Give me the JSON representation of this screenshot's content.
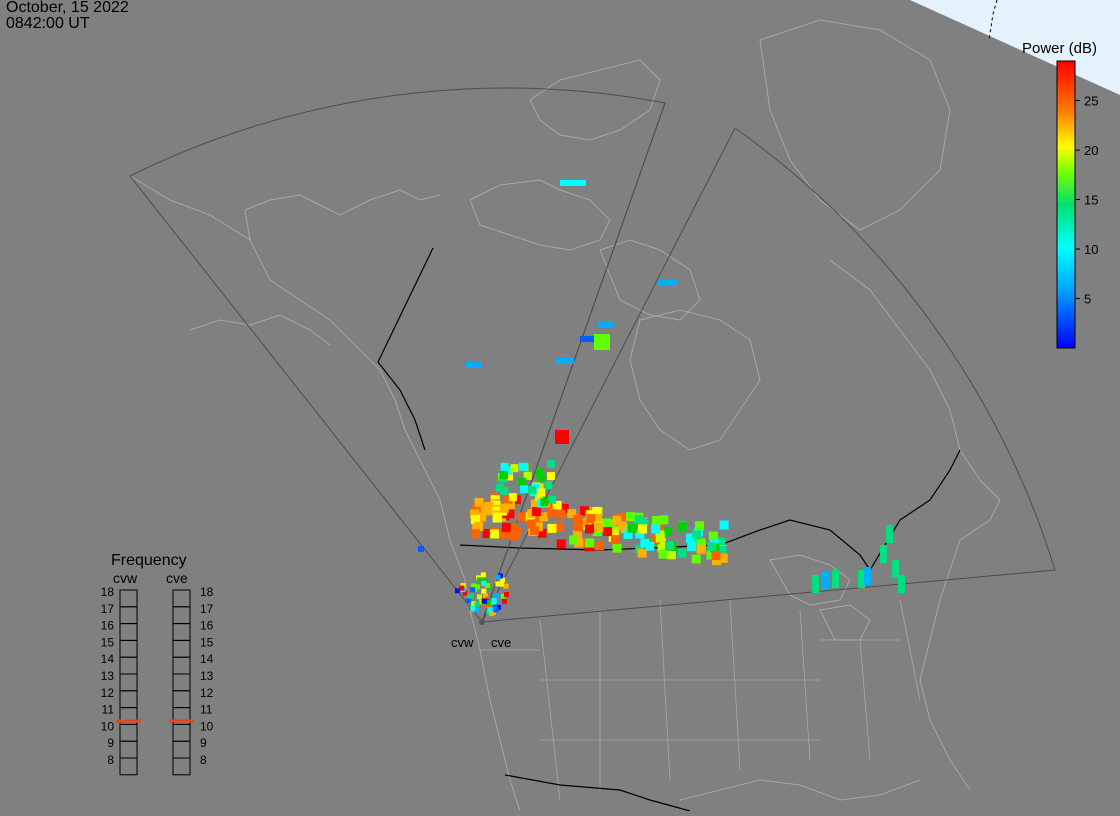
{
  "header": {
    "date": "October, 15 2022",
    "time": "0842:00 UT"
  },
  "colors": {
    "background": "#808080",
    "land_outline": "#a8a8a8",
    "border": "#000000",
    "fov_outline": "#4d4d4d",
    "sunlit": "#e4f2fb",
    "frequency_marker": "#e8461c"
  },
  "colorbar": {
    "title": "Power (dB)",
    "min": 0,
    "max": 29,
    "ticks": [
      {
        "value": 5,
        "label": "5"
      },
      {
        "value": 10,
        "label": "10"
      },
      {
        "value": 15,
        "label": "15"
      },
      {
        "value": 20,
        "label": "20"
      },
      {
        "value": 25,
        "label": "25"
      }
    ]
  },
  "radars": [
    {
      "code": "cvw",
      "label": "cvw",
      "frequency": 10.7
    },
    {
      "code": "cve",
      "label": "cve",
      "frequency": 10.7
    }
  ],
  "frequency_panel": {
    "title": "Frequency",
    "labels": [
      "18",
      "17",
      "16",
      "15",
      "14",
      "13",
      "12",
      "11",
      "10",
      "9",
      "8"
    ]
  }
}
